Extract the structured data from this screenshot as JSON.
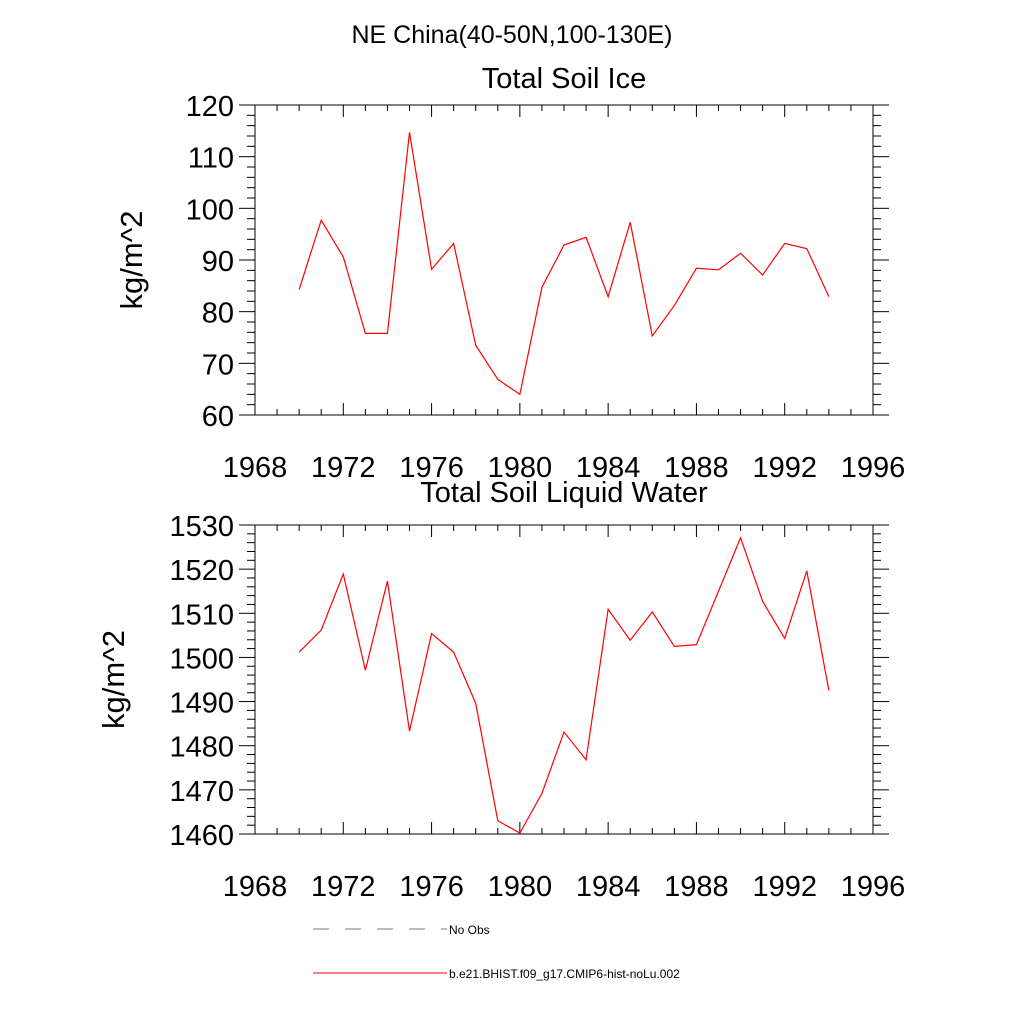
{
  "figure": {
    "suptitle": "NE China(40-50N,100-130E)"
  },
  "chart_data": [
    {
      "type": "line",
      "title": "Total Soil Ice",
      "xlabel": "",
      "ylabel": "kg/m^2",
      "xlim": [
        1968,
        1996
      ],
      "ylim": [
        60,
        120
      ],
      "xticks": [
        1968,
        1972,
        1976,
        1980,
        1984,
        1988,
        1992,
        1996
      ],
      "yticks": [
        60,
        70,
        80,
        90,
        100,
        110,
        120
      ],
      "x": [
        1970,
        1971,
        1972,
        1973,
        1974,
        1975,
        1976,
        1977,
        1978,
        1979,
        1980,
        1981,
        1982,
        1983,
        1984,
        1985,
        1986,
        1987,
        1988,
        1989,
        1990,
        1991,
        1992,
        1993,
        1994
      ],
      "series": [
        {
          "name": "b.e21.BHIST.f09_g17.CMIP6-hist-noLu.002",
          "color": "#ff0000",
          "values": [
            84.3,
            97.7,
            90.6,
            75.8,
            75.8,
            114.7,
            88.2,
            93.2,
            73.5,
            66.9,
            64.0,
            84.7,
            92.9,
            94.4,
            82.9,
            97.3,
            75.3,
            81.2,
            88.4,
            88.1,
            91.3,
            87.1,
            93.2,
            92.2,
            82.9
          ]
        }
      ]
    },
    {
      "type": "line",
      "title": "Total Soil Liquid Water",
      "xlabel": "",
      "ylabel": "kg/m^2",
      "xlim": [
        1968,
        1996
      ],
      "ylim": [
        1460,
        1530
      ],
      "xticks": [
        1968,
        1972,
        1976,
        1980,
        1984,
        1988,
        1992,
        1996
      ],
      "yticks": [
        1460,
        1470,
        1480,
        1490,
        1500,
        1510,
        1520,
        1530
      ],
      "x": [
        1970,
        1971,
        1972,
        1973,
        1974,
        1975,
        1976,
        1977,
        1978,
        1979,
        1980,
        1981,
        1982,
        1983,
        1984,
        1985,
        1986,
        1987,
        1988,
        1989,
        1990,
        1991,
        1992,
        1993,
        1994
      ],
      "series": [
        {
          "name": "b.e21.BHIST.f09_g17.CMIP6-hist-noLu.002",
          "color": "#ff0000",
          "values": [
            1501.2,
            1506.2,
            1518.9,
            1497.1,
            1517.3,
            1483.3,
            1505.4,
            1501.2,
            1489.6,
            1463.0,
            1460.2,
            1469.2,
            1483.1,
            1476.8,
            1510.9,
            1503.9,
            1510.3,
            1502.5,
            1502.9,
            1515.0,
            1527.1,
            1512.7,
            1504.3,
            1519.6,
            1492.5
          ]
        }
      ]
    }
  ],
  "legend": {
    "items": [
      {
        "label": "No Obs",
        "color": "#6b7fa8",
        "style": "dashed"
      },
      {
        "label": "b.e21.BHIST.f09_g17.CMIP6-hist-noLu.002",
        "color": "#ff0000",
        "style": "solid"
      }
    ]
  }
}
